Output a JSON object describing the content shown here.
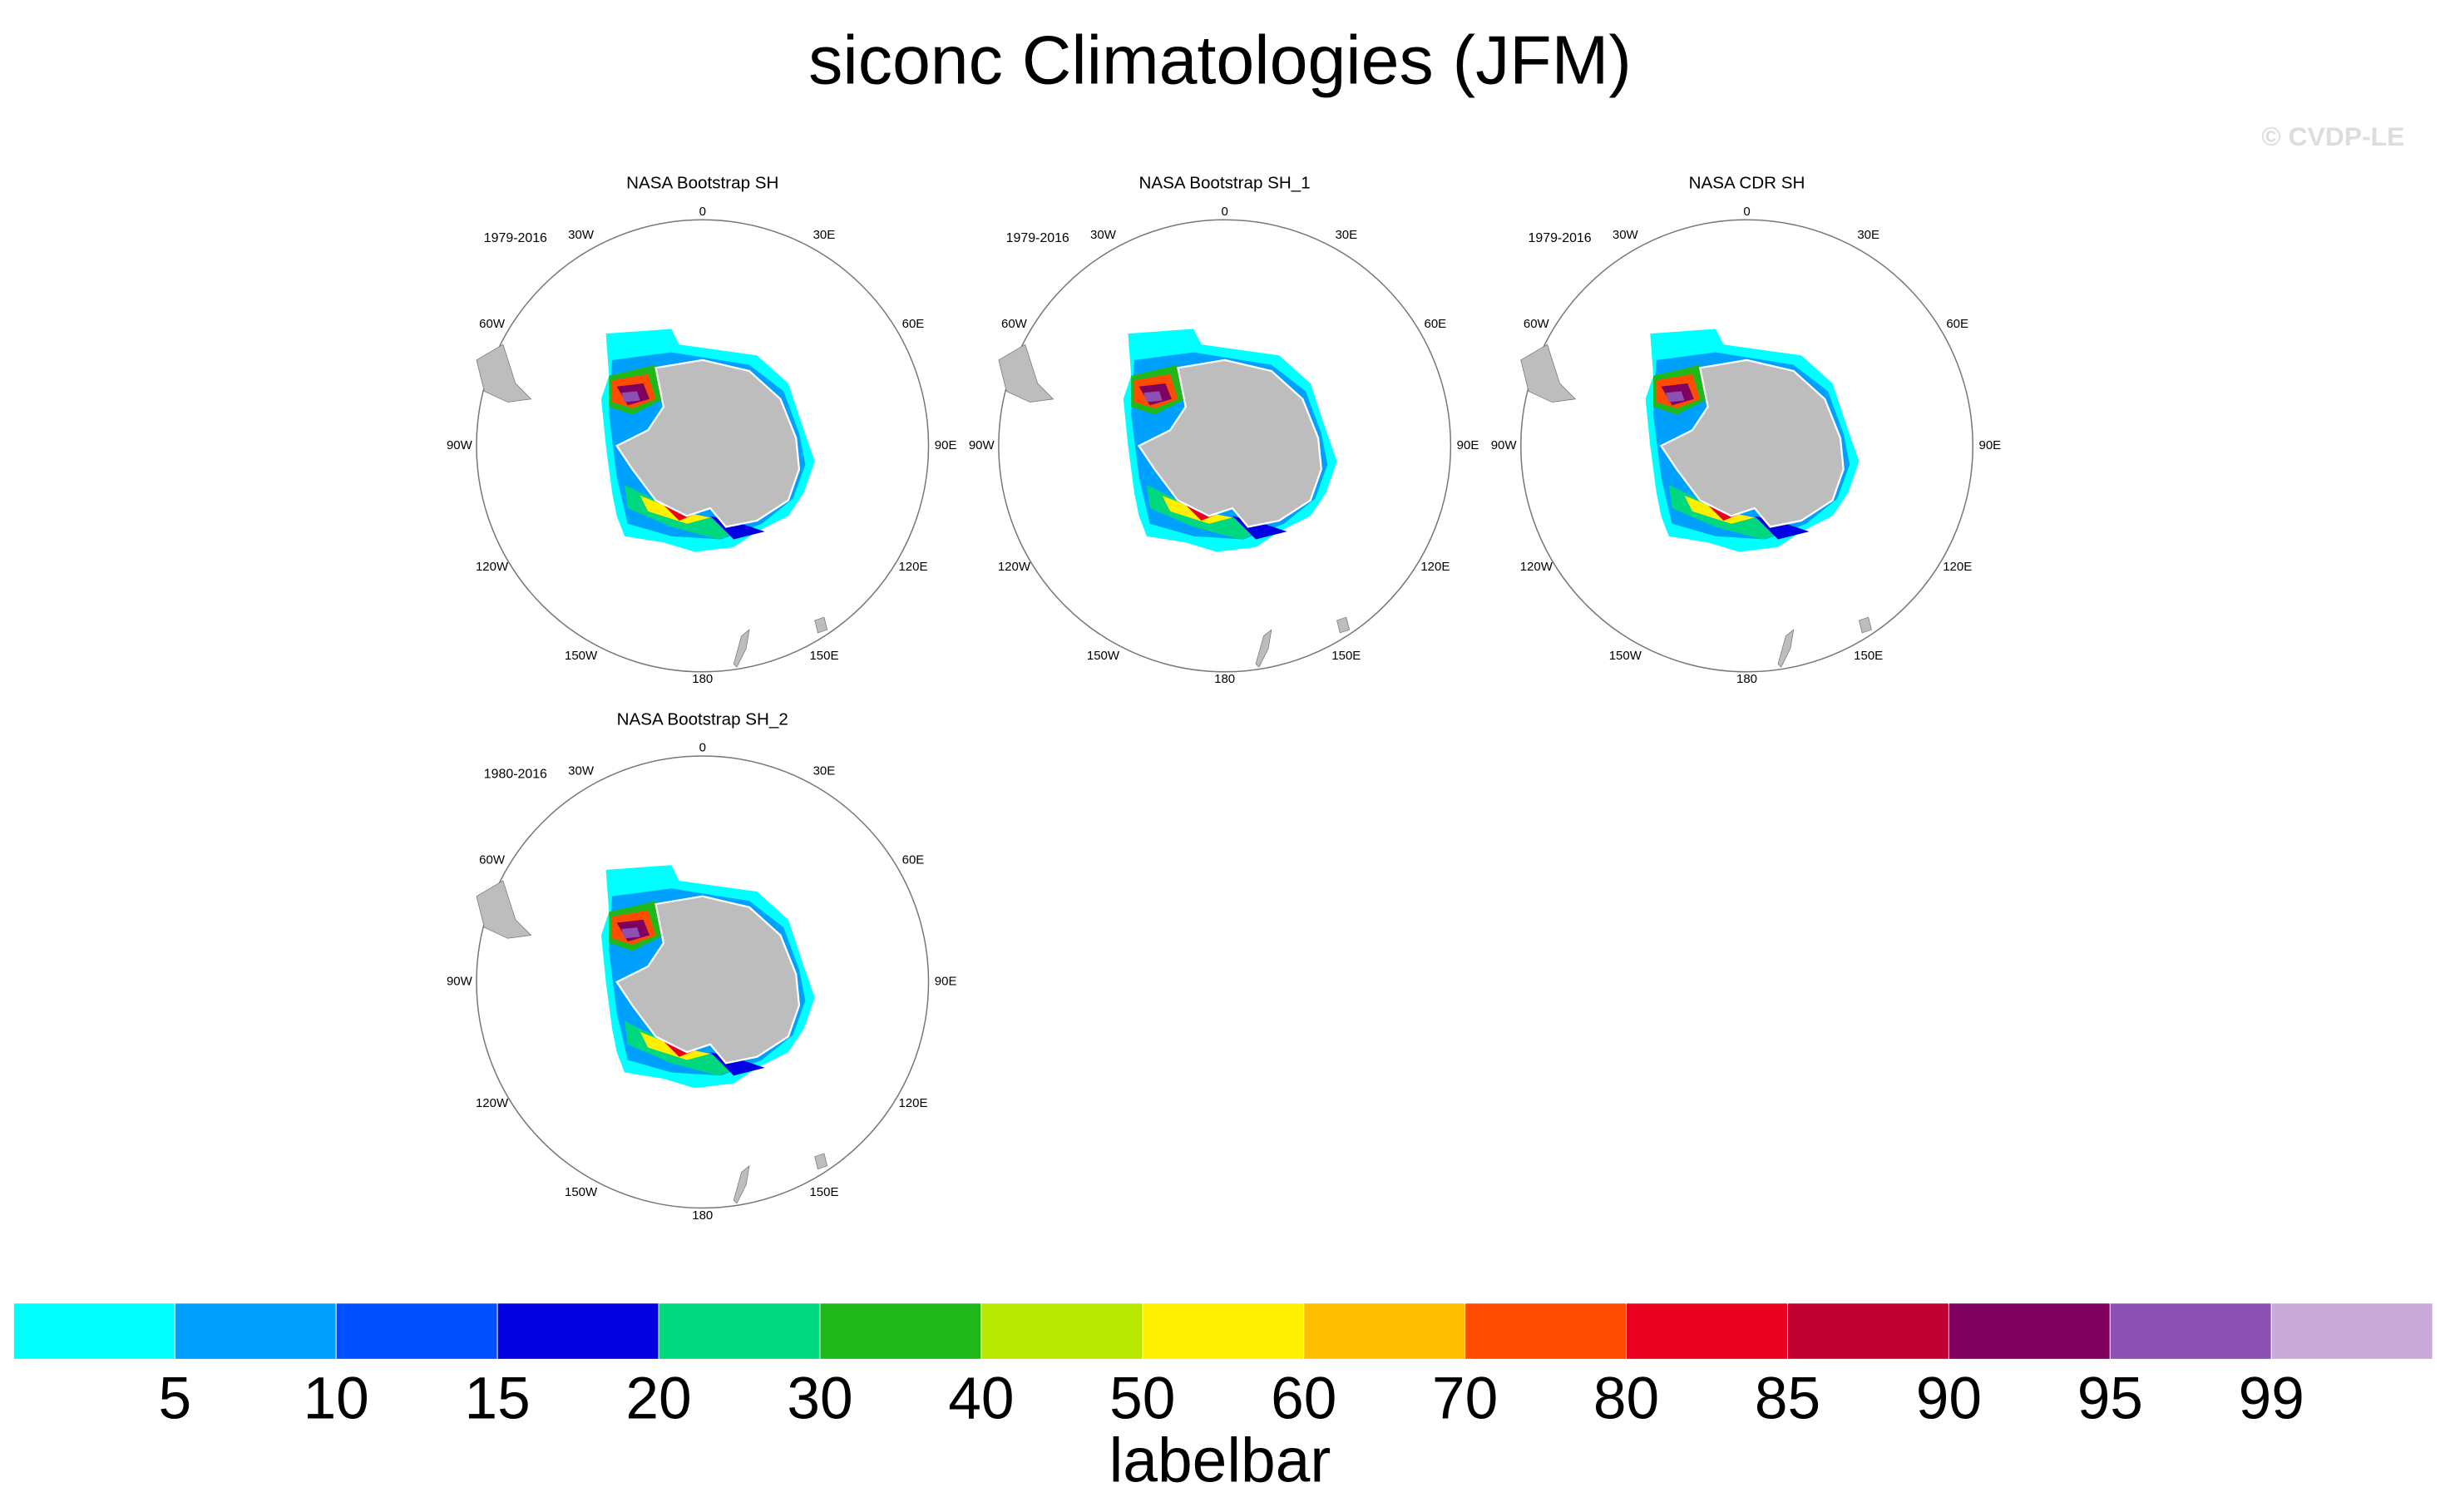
{
  "title": "siconc Climatologies (JFM)",
  "copyright": "© CVDP-LE",
  "panels": [
    {
      "title": "NASA Bootstrap SH",
      "years": "1979-2016"
    },
    {
      "title": "NASA Bootstrap SH_1",
      "years": "1979-2016"
    },
    {
      "title": "NASA CDR SH",
      "years": "1979-2016"
    },
    {
      "title": "NASA Bootstrap SH_2",
      "years": "1980-2016"
    }
  ],
  "lon_labels": [
    "0",
    "30E",
    "60E",
    "90E",
    "120E",
    "150E",
    "180",
    "150W",
    "120W",
    "90W",
    "60W",
    "30W"
  ],
  "labelbar": {
    "title": "labelbar",
    "levels": [
      5,
      10,
      15,
      20,
      30,
      40,
      50,
      60,
      70,
      80,
      85,
      90,
      95,
      99
    ],
    "colors": [
      "#00ffff",
      "#00a0ff",
      "#0050ff",
      "#0000e0",
      "#00d880",
      "#20b818",
      "#b8e800",
      "#fff000",
      "#ffbf00",
      "#ff4c00",
      "#e8001e",
      "#c00030",
      "#800060",
      "#8c50b4",
      "#c8aad8"
    ]
  }
}
